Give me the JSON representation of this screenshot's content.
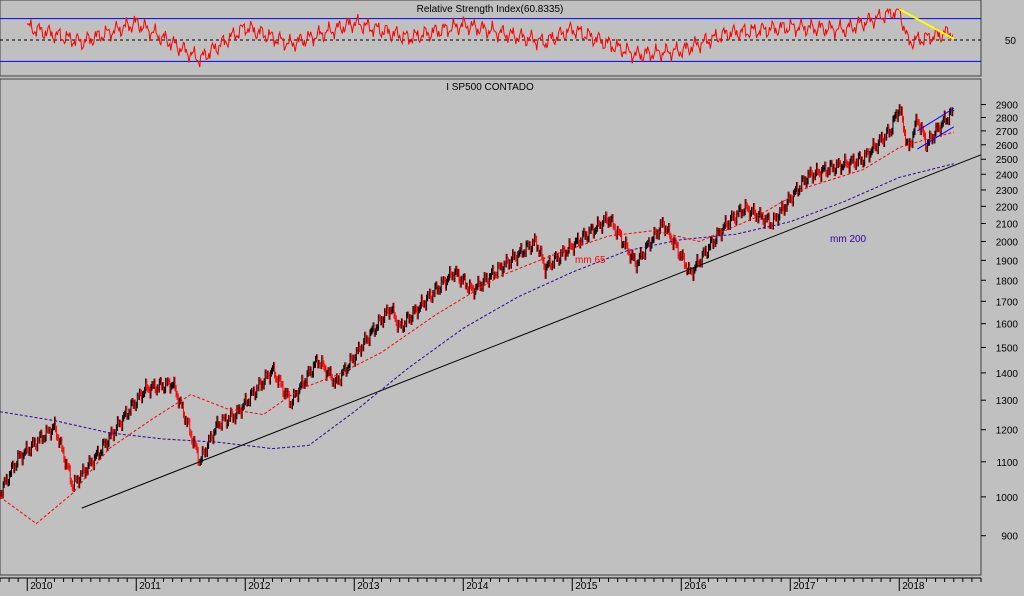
{
  "colors": {
    "background": "#c0c0c0",
    "price_up": "#000000",
    "price_down": "#ff0000",
    "rsi_line": "#ff0000",
    "rsi_bands": "#0000ff",
    "ma65": "#ff0000",
    "ma200": "#330099",
    "trendline": "#000000",
    "channel": "#0000ff",
    "rsi_trend": "#ffff00"
  },
  "chart_data": [
    {
      "type": "line",
      "title": "Relative Strength Index(60.8335)",
      "ylim": [
        20,
        80
      ],
      "yticks": [
        50
      ],
      "levels": [
        30,
        50,
        70
      ],
      "grid": false,
      "last_value": 60.8335,
      "series": [
        {
          "x": [
            "2010-01",
            "2010-07",
            "2011-01",
            "2011-08",
            "2012-01",
            "2012-06",
            "2013-01",
            "2013-07",
            "2014-01",
            "2014-10",
            "2015-01",
            "2015-08",
            "2016-01",
            "2016-06",
            "2017-01",
            "2017-07",
            "2018-01",
            "2018-02",
            "2018-04",
            "2018-07"
          ],
          "values": [
            62,
            48,
            66,
            32,
            62,
            46,
            66,
            52,
            64,
            48,
            60,
            36,
            40,
            56,
            62,
            60,
            78,
            48,
            52,
            58
          ]
        }
      ],
      "trend_segment": {
        "x": [
          "2018-01",
          "2018-07"
        ],
        "values": [
          79,
          51
        ]
      }
    },
    {
      "type": "line",
      "title": "I SP500 CONTADO",
      "ylim": [
        820,
        2960
      ],
      "yticks": [
        900,
        1000,
        1100,
        1200,
        1300,
        1400,
        1500,
        1600,
        1700,
        1800,
        1900,
        2000,
        2100,
        2200,
        2300,
        2400,
        2500,
        2600,
        2700,
        2800,
        2900
      ],
      "xticks": [
        "2010",
        "2011",
        "2012",
        "2013",
        "2014",
        "2015",
        "2016",
        "2017",
        "2018"
      ],
      "xlim": [
        "2009-10",
        "2018-10"
      ],
      "grid": false,
      "series": [
        {
          "x": [
            "2009-10",
            "2009-12",
            "2010-04",
            "2010-06",
            "2010-09",
            "2011-02",
            "2011-05",
            "2011-08",
            "2011-10",
            "2011-12",
            "2012-04",
            "2012-06",
            "2012-09",
            "2012-11",
            "2013-05",
            "2013-06",
            "2013-12",
            "2014-02",
            "2014-09",
            "2014-10",
            "2015-05",
            "2015-08",
            "2015-11",
            "2016-02",
            "2016-06",
            "2016-08",
            "2016-11",
            "2017-03",
            "2017-06",
            "2017-09",
            "2017-12",
            "2018-01",
            "2018-02",
            "2018-03",
            "2018-04",
            "2018-06",
            "2018-07"
          ],
          "values": [
            1010,
            1110,
            1210,
            1030,
            1130,
            1340,
            1360,
            1100,
            1220,
            1250,
            1410,
            1290,
            1450,
            1360,
            1670,
            1580,
            1840,
            1750,
            2000,
            1860,
            2130,
            1880,
            2100,
            1830,
            2100,
            2190,
            2100,
            2390,
            2450,
            2500,
            2700,
            2880,
            2560,
            2790,
            2600,
            2780,
            2840
          ]
        },
        {
          "name": "mm 65",
          "x": [
            "2009-10",
            "2010-02",
            "2010-06",
            "2010-10",
            "2011-03",
            "2011-07",
            "2011-11",
            "2012-03",
            "2012-07",
            "2012-11",
            "2013-04",
            "2013-10",
            "2014-05",
            "2014-11",
            "2015-05",
            "2015-10",
            "2016-03",
            "2016-09",
            "2017-03",
            "2017-09",
            "2018-01",
            "2018-04",
            "2018-07"
          ],
          "values": [
            1000,
            930,
            1010,
            1140,
            1240,
            1320,
            1270,
            1250,
            1340,
            1390,
            1480,
            1640,
            1820,
            1930,
            2030,
            2060,
            2000,
            2130,
            2320,
            2430,
            2580,
            2640,
            2690
          ]
        },
        {
          "name": "mm 200",
          "x": [
            "2009-10",
            "2010-04",
            "2010-10",
            "2011-04",
            "2011-10",
            "2012-04",
            "2012-08",
            "2013-01",
            "2013-07",
            "2014-01",
            "2014-07",
            "2015-01",
            "2015-07",
            "2016-01",
            "2016-07",
            "2017-01",
            "2017-07",
            "2018-01",
            "2018-07"
          ],
          "values": [
            1260,
            1230,
            1190,
            1170,
            1160,
            1140,
            1150,
            1260,
            1420,
            1580,
            1720,
            1840,
            1950,
            2010,
            2040,
            2110,
            2230,
            2380,
            2470
          ]
        }
      ],
      "trendline": {
        "x": [
          "2010-07",
          "2018-10"
        ],
        "values": [
          970,
          2530
        ]
      },
      "channel": {
        "upper": {
          "x": [
            "2018-03",
            "2018-07"
          ],
          "values": [
            2700,
            2870
          ]
        },
        "lower": {
          "x": [
            "2018-03",
            "2018-07"
          ],
          "values": [
            2570,
            2730
          ]
        }
      }
    }
  ]
}
